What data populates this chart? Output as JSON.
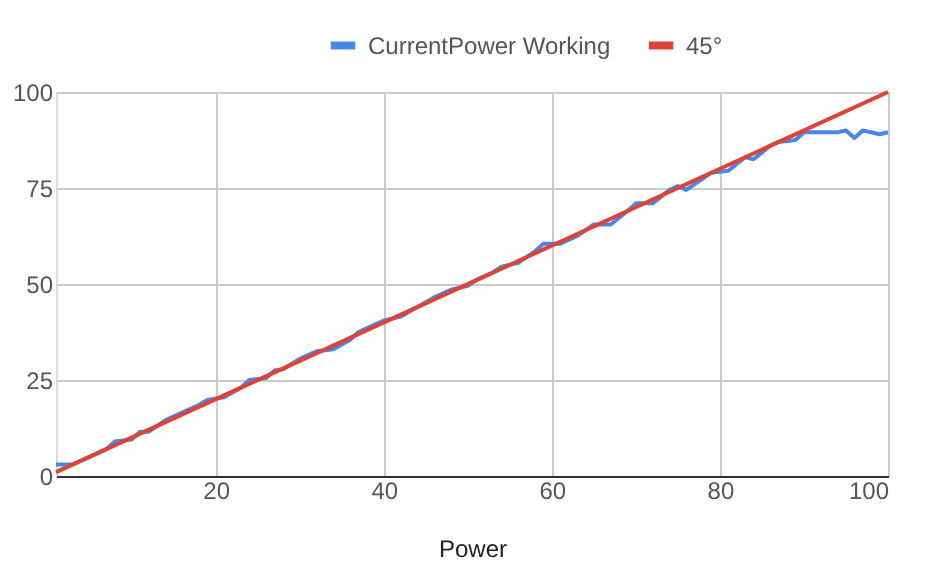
{
  "chart_data": {
    "type": "line",
    "xlabel": "Power",
    "xlim": [
      1,
      100
    ],
    "xticks": [
      20,
      40,
      60,
      80,
      100
    ],
    "ylim": [
      0,
      100
    ],
    "yticks": [
      0,
      25,
      50,
      75,
      100
    ],
    "grid": true,
    "legend": "top",
    "series": [
      {
        "name": "CurrentPower Working",
        "color": "#4a86e8",
        "x": [
          1,
          3,
          5,
          7,
          8,
          10,
          11,
          12,
          14,
          16,
          18,
          19,
          21,
          23,
          24,
          26,
          27,
          28,
          30,
          32,
          34,
          36,
          37,
          39,
          40,
          42,
          44,
          46,
          48,
          50,
          51,
          53,
          54,
          56,
          58,
          59,
          61,
          63,
          65,
          67,
          69,
          70,
          72,
          74,
          75,
          76,
          78,
          79,
          81,
          83,
          84,
          86,
          87,
          89,
          90,
          92,
          94,
          95,
          96,
          97,
          99,
          100
        ],
        "values": [
          3,
          3,
          5,
          7,
          9,
          9.5,
          11.5,
          11.5,
          14.5,
          16.5,
          18.5,
          19.8,
          20.5,
          23,
          25,
          25.5,
          27.5,
          27.8,
          30.5,
          32.5,
          33,
          35.5,
          37.5,
          39.5,
          40.5,
          41.5,
          44,
          46.5,
          48.5,
          49.5,
          51,
          53,
          54.5,
          55.5,
          58.5,
          60.5,
          60.5,
          62.5,
          65.5,
          65.5,
          69,
          71,
          71,
          74.5,
          75.5,
          74.5,
          77.5,
          79,
          79.5,
          83,
          82.5,
          86,
          87,
          87.5,
          89.5,
          89.5,
          89.5,
          90,
          88,
          90,
          89,
          89.5
        ]
      },
      {
        "name": "45°",
        "color": "#db4437",
        "x": [
          1,
          100
        ],
        "values": [
          1,
          100
        ]
      }
    ]
  }
}
